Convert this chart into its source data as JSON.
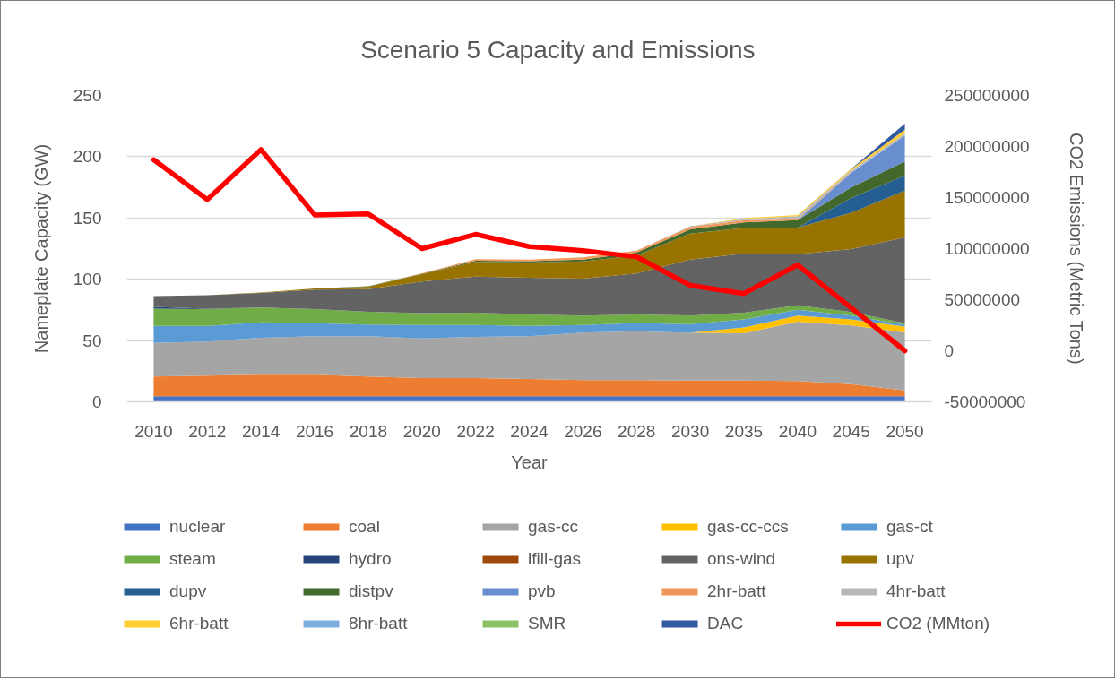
{
  "chart_data": {
    "type": "area",
    "title": "Scenario 5 Capacity and Emissions",
    "xlabel": "Year",
    "ylabel": "Nameplate Capacity (GW)",
    "y2label": "CO2 Emissions (Metric Tons)",
    "categories": [
      "2010",
      "2012",
      "2014",
      "2016",
      "2018",
      "2020",
      "2022",
      "2024",
      "2026",
      "2028",
      "2030",
      "2035",
      "2040",
      "2045",
      "2050"
    ],
    "stacked": true,
    "ylim": [
      0,
      250
    ],
    "yticks": [
      0,
      50,
      100,
      150,
      200,
      250
    ],
    "y2lim": [
      -50000000,
      250000000
    ],
    "y2ticks": [
      -50000000,
      0,
      50000000,
      100000000,
      150000000,
      200000000,
      250000000
    ],
    "grid": "y",
    "legend": "bottom",
    "series": [
      {
        "name": "nuclear",
        "color": "#4472c4",
        "values": [
          4.6,
          4.6,
          4.6,
          4.6,
          4.6,
          4.6,
          4.6,
          4.6,
          4.6,
          4.6,
          4.6,
          4.6,
          4.6,
          4.6,
          4.6
        ]
      },
      {
        "name": "coal",
        "color": "#ed7d31",
        "values": [
          16.1,
          16.8,
          17.6,
          17.6,
          16.1,
          14.7,
          14.7,
          14.0,
          13.2,
          13.2,
          12.7,
          12.7,
          12.4,
          9.9,
          4.8
        ]
      },
      {
        "name": "gas-cc",
        "color": "#a5a5a5",
        "values": [
          27.3,
          27.8,
          30.1,
          31.3,
          32.8,
          32.5,
          33.7,
          34.9,
          38.6,
          39.8,
          39.1,
          38.7,
          48.5,
          47.9,
          47.2
        ]
      },
      {
        "name": "gas-cc-ccs",
        "color": "#ffc000",
        "values": [
          0,
          0,
          0,
          0,
          0,
          0,
          0,
          0,
          0,
          0,
          0,
          4.7,
          4.9,
          4.8,
          4.8
        ]
      },
      {
        "name": "gas-ct",
        "color": "#5b9bd5",
        "values": [
          13.9,
          12.7,
          12.5,
          10.6,
          9.6,
          10.9,
          9.7,
          8.4,
          6.3,
          6.7,
          7.0,
          6.5,
          4.8,
          3.2,
          1.5
        ]
      },
      {
        "name": "steam",
        "color": "#70ad47",
        "values": [
          14.2,
          13.8,
          12.1,
          11.6,
          10.4,
          9.6,
          10.1,
          9.4,
          7.7,
          7.0,
          7.0,
          5.6,
          3.6,
          2.9,
          1.2
        ]
      },
      {
        "name": "hydro",
        "color": "#264478",
        "values": [
          1.3,
          0.4,
          0,
          0,
          0,
          0,
          0,
          0,
          0,
          0,
          0,
          0,
          0,
          0,
          0
        ]
      },
      {
        "name": "lfill-gas",
        "color": "#9e480e",
        "values": [
          null,
          null,
          null,
          null,
          null,
          null,
          null,
          null,
          null,
          null,
          null,
          null,
          null,
          null,
          null
        ]
      },
      {
        "name": "ons-wind",
        "color": "#636363",
        "values": [
          8.9,
          10.9,
          12.0,
          15.9,
          18.5,
          25.8,
          29.4,
          29.9,
          30.1,
          33.5,
          45.7,
          48.2,
          41.6,
          51.4,
          70.0
        ]
      },
      {
        "name": "upv",
        "color": "#997300",
        "values": [
          0,
          0,
          0.3,
          0.9,
          2.0,
          6.0,
          12.0,
          12.5,
          14.0,
          14.5,
          21.2,
          20.9,
          21.7,
          29.5,
          38.3
        ]
      },
      {
        "name": "dupv",
        "color": "#255e91",
        "values": [
          0,
          0,
          0,
          0,
          0,
          0,
          0,
          0,
          0,
          0,
          0,
          0,
          0,
          12.1,
          12.1
        ]
      },
      {
        "name": "distpv",
        "color": "#43682b",
        "values": [
          0,
          0,
          0,
          0,
          0.3,
          0.5,
          1.0,
          1.0,
          1.6,
          2.6,
          3.4,
          4.4,
          6.1,
          8.5,
          11.6
        ]
      },
      {
        "name": "pvb",
        "color": "#698ed0",
        "values": [
          0,
          0,
          0,
          0,
          0,
          0,
          0,
          0,
          0,
          0,
          0,
          0,
          0,
          12.1,
          21.1
        ]
      },
      {
        "name": "2hr-batt",
        "color": "#f1975a",
        "values": [
          0,
          0,
          0,
          0,
          0,
          0.3,
          1.2,
          1.4,
          1.7,
          1.5,
          2.0,
          1.7,
          0.8,
          0.5,
          null
        ]
      },
      {
        "name": "4hr-batt",
        "color": "#b7b7b7",
        "values": [
          0,
          0,
          0,
          0,
          0,
          0,
          0,
          0,
          0,
          0,
          0.5,
          1.2,
          2.5,
          1.2,
          1.7
        ]
      },
      {
        "name": "6hr-batt",
        "color": "#ffcd33",
        "values": [
          0,
          0,
          0,
          0,
          0,
          0,
          0,
          0,
          0,
          0,
          0,
          0.7,
          1.0,
          1.2,
          3.1
        ]
      },
      {
        "name": "8hr-batt",
        "color": "#7cafdd",
        "values": [
          null,
          null,
          null,
          null,
          null,
          null,
          null,
          null,
          null,
          null,
          null,
          null,
          null,
          null,
          null
        ]
      },
      {
        "name": "SMR",
        "color": "#8cc168",
        "values": [
          null,
          null,
          null,
          null,
          null,
          null,
          null,
          null,
          null,
          null,
          null,
          null,
          null,
          null,
          null
        ]
      },
      {
        "name": "DAC",
        "color": "#335aa1",
        "values": [
          0,
          0,
          0,
          0,
          0,
          0,
          0,
          0,
          0,
          0,
          0,
          0,
          0,
          0.3,
          4.9
        ]
      },
      {
        "name": "CO2 (MMton)",
        "type": "line",
        "axis": "y2",
        "color": "#ff0000",
        "values": [
          187000000,
          148000000,
          197000000,
          133000000,
          134000000,
          100000000,
          114000000,
          102000000,
          98000000,
          92000000,
          64000000,
          56000000,
          84000000,
          42000000,
          0
        ]
      }
    ]
  }
}
